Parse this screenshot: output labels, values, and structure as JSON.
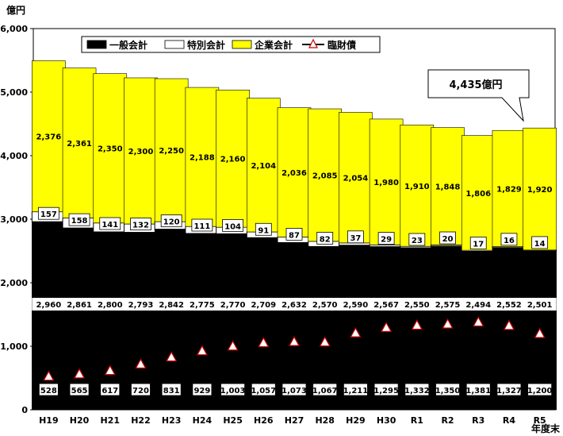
{
  "chart_data": {
    "type": "bar",
    "stacked": true,
    "unit_label": "億円",
    "x_unit_label": "年度末",
    "callout": "4,435億円",
    "categories": [
      "H19",
      "H20",
      "H21",
      "H22",
      "H23",
      "H24",
      "H25",
      "H26",
      "H27",
      "H28",
      "H29",
      "H30",
      "R1",
      "R2",
      "R3",
      "R4",
      "R5"
    ],
    "series": [
      {
        "name": "一般会計",
        "color": "#000000",
        "values": [
          2960,
          2861,
          2800,
          2793,
          2842,
          2775,
          2770,
          2709,
          2632,
          2570,
          2590,
          2567,
          2550,
          2575,
          2494,
          2552,
          2501
        ]
      },
      {
        "name": "特別会計",
        "color": "#ffffff",
        "values": [
          157,
          158,
          141,
          132,
          120,
          111,
          104,
          91,
          87,
          82,
          37,
          29,
          23,
          20,
          17,
          16,
          14
        ]
      },
      {
        "name": "企業会計",
        "color": "#ffff00",
        "values": [
          2376,
          2361,
          2350,
          2300,
          2250,
          2188,
          2160,
          2104,
          2036,
          2085,
          2054,
          1980,
          1910,
          1848,
          1806,
          1829,
          1920
        ]
      }
    ],
    "line_series": {
      "name": "臨財債",
      "marker": "triangle",
      "marker_color": "#cc0000",
      "values": [
        528,
        565,
        617,
        720,
        831,
        929,
        1003,
        1057,
        1073,
        1067,
        1211,
        1295,
        1332,
        1350,
        1381,
        1327,
        1200
      ]
    },
    "ylim": [
      0,
      6000
    ],
    "yticks": [
      "0",
      "1,000",
      "2,000",
      "3,000",
      "4,000",
      "5,000",
      "6,000"
    ],
    "grid": false,
    "legend_position": "top"
  }
}
